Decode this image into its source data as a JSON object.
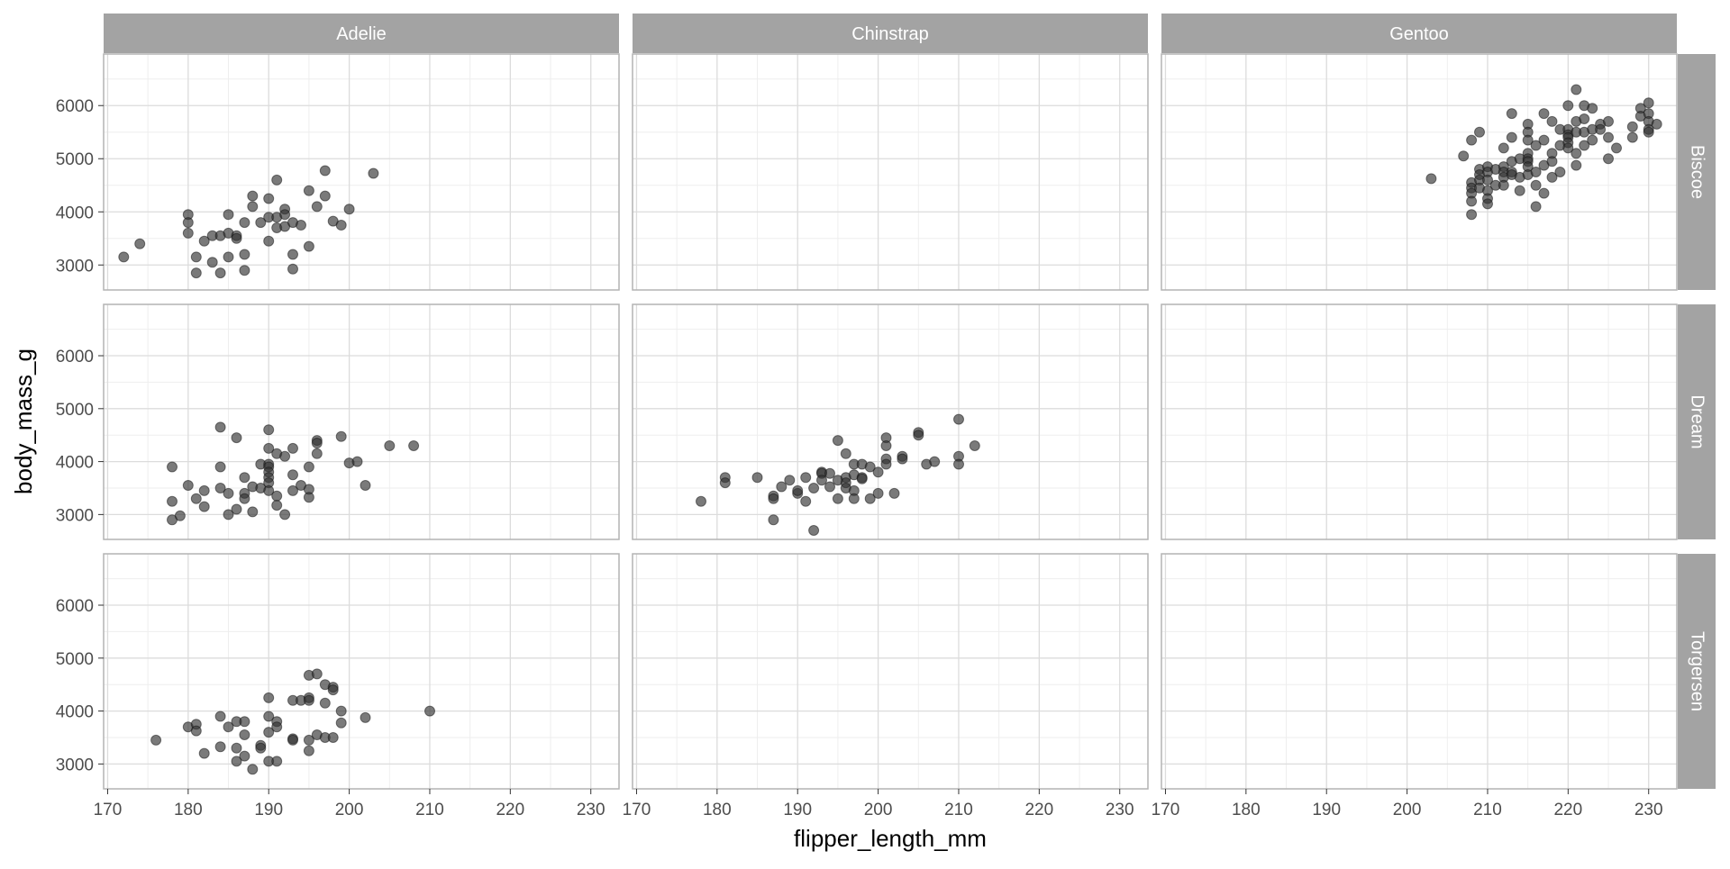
{
  "chart_data": {
    "type": "scatter",
    "facet_columns": [
      "Adelie",
      "Chinstrap",
      "Gentoo"
    ],
    "facet_rows": [
      "Biscoe",
      "Dream",
      "Torgersen"
    ],
    "xlabel": "flipper_length_mm",
    "ylabel": "body_mass_g",
    "xlim": [
      169.5,
      233.5
    ],
    "ylim": [
      2530,
      6970
    ],
    "x_ticks": [
      170,
      180,
      190,
      200,
      210,
      220,
      230
    ],
    "y_ticks": [
      3000,
      4000,
      5000,
      6000
    ],
    "grid": true,
    "colors": {
      "point": "#333333",
      "strip_fill": "#a3a3a3",
      "strip_text": "#ffffff",
      "panel_border": "#b3b3b3",
      "grid_major": "#dcdcdc",
      "grid_minor": "#eeeeee"
    },
    "panels": [
      {
        "species": "Adelie",
        "island": "Biscoe",
        "points": [
          [
            172,
            3150
          ],
          [
            174,
            3400
          ],
          [
            180,
            3950
          ],
          [
            180,
            3800
          ],
          [
            180,
            3600
          ],
          [
            181,
            3150
          ],
          [
            181,
            2850
          ],
          [
            182,
            3450
          ],
          [
            183,
            3550
          ],
          [
            183,
            3050
          ],
          [
            184,
            3550
          ],
          [
            184,
            2850
          ],
          [
            185,
            3600
          ],
          [
            185,
            3950
          ],
          [
            185,
            3150
          ],
          [
            186,
            3550
          ],
          [
            186,
            3500
          ],
          [
            187,
            3800
          ],
          [
            187,
            3200
          ],
          [
            187,
            2900
          ],
          [
            188,
            4300
          ],
          [
            188,
            4100
          ],
          [
            189,
            3800
          ],
          [
            190,
            4250
          ],
          [
            190,
            3900
          ],
          [
            190,
            3450
          ],
          [
            191,
            4600
          ],
          [
            191,
            3900
          ],
          [
            191,
            3700
          ],
          [
            192,
            4050
          ],
          [
            192,
            3950
          ],
          [
            192,
            3725
          ],
          [
            193,
            3800
          ],
          [
            193,
            3200
          ],
          [
            193,
            2925
          ],
          [
            194,
            3750
          ],
          [
            195,
            4400
          ],
          [
            195,
            3350
          ],
          [
            196,
            4100
          ],
          [
            197,
            4775
          ],
          [
            197,
            4300
          ],
          [
            198,
            3825
          ],
          [
            199,
            3750
          ],
          [
            200,
            4050
          ],
          [
            203,
            4725
          ]
        ]
      },
      {
        "species": "Chinstrap",
        "island": "Biscoe",
        "points": []
      },
      {
        "species": "Gentoo",
        "island": "Biscoe",
        "points": [
          [
            203,
            4625
          ],
          [
            207,
            5050
          ],
          [
            208,
            5350
          ],
          [
            208,
            4550
          ],
          [
            208,
            4450
          ],
          [
            208,
            4350
          ],
          [
            208,
            4200
          ],
          [
            208,
            3950
          ],
          [
            209,
            5500
          ],
          [
            209,
            4800
          ],
          [
            209,
            4700
          ],
          [
            209,
            4600
          ],
          [
            209,
            4450
          ],
          [
            210,
            4850
          ],
          [
            210,
            4750
          ],
          [
            210,
            4600
          ],
          [
            210,
            4400
          ],
          [
            210,
            4250
          ],
          [
            210,
            4150
          ],
          [
            211,
            4800
          ],
          [
            211,
            4500
          ],
          [
            212,
            5200
          ],
          [
            212,
            4850
          ],
          [
            212,
            4750
          ],
          [
            212,
            4650
          ],
          [
            212,
            4500
          ],
          [
            213,
            5850
          ],
          [
            213,
            5400
          ],
          [
            213,
            4950
          ],
          [
            213,
            4750
          ],
          [
            213,
            4700
          ],
          [
            214,
            5000
          ],
          [
            214,
            4650
          ],
          [
            214,
            4400
          ],
          [
            215,
            5650
          ],
          [
            215,
            5500
          ],
          [
            215,
            5350
          ],
          [
            215,
            5100
          ],
          [
            215,
            5000
          ],
          [
            215,
            4950
          ],
          [
            215,
            4850
          ],
          [
            215,
            4700
          ],
          [
            216,
            5250
          ],
          [
            216,
            4750
          ],
          [
            216,
            4500
          ],
          [
            216,
            4100
          ],
          [
            217,
            5850
          ],
          [
            217,
            5350
          ],
          [
            217,
            4875
          ],
          [
            217,
            4350
          ],
          [
            218,
            5700
          ],
          [
            218,
            5100
          ],
          [
            218,
            4950
          ],
          [
            218,
            4650
          ],
          [
            219,
            5550
          ],
          [
            219,
            5250
          ],
          [
            219,
            4750
          ],
          [
            220,
            6000
          ],
          [
            220,
            5550
          ],
          [
            220,
            5450
          ],
          [
            220,
            5400
          ],
          [
            220,
            5300
          ],
          [
            220,
            5200
          ],
          [
            221,
            6300
          ],
          [
            221,
            5700
          ],
          [
            221,
            5500
          ],
          [
            221,
            5100
          ],
          [
            221,
            4875
          ],
          [
            222,
            6000
          ],
          [
            222,
            5750
          ],
          [
            222,
            5500
          ],
          [
            222,
            5250
          ],
          [
            223,
            5950
          ],
          [
            223,
            5550
          ],
          [
            223,
            5350
          ],
          [
            224,
            5650
          ],
          [
            224,
            5550
          ],
          [
            225,
            5700
          ],
          [
            225,
            5400
          ],
          [
            225,
            5000
          ],
          [
            226,
            5200
          ],
          [
            228,
            5600
          ],
          [
            228,
            5400
          ],
          [
            229,
            5950
          ],
          [
            229,
            5800
          ],
          [
            230,
            6050
          ],
          [
            230,
            5850
          ],
          [
            230,
            5700
          ],
          [
            230,
            5550
          ],
          [
            230,
            5500
          ],
          [
            231,
            5650
          ]
        ]
      },
      {
        "species": "Adelie",
        "island": "Dream",
        "points": [
          [
            178,
            3900
          ],
          [
            178,
            3250
          ],
          [
            178,
            2900
          ],
          [
            179,
            2975
          ],
          [
            180,
            3550
          ],
          [
            181,
            3300
          ],
          [
            182,
            3450
          ],
          [
            182,
            3150
          ],
          [
            184,
            4650
          ],
          [
            184,
            3900
          ],
          [
            184,
            3500
          ],
          [
            185,
            3400
          ],
          [
            185,
            3000
          ],
          [
            186,
            4450
          ],
          [
            186,
            3100
          ],
          [
            187,
            3700
          ],
          [
            187,
            3400
          ],
          [
            187,
            3300
          ],
          [
            188,
            3525
          ],
          [
            188,
            3050
          ],
          [
            189,
            3950
          ],
          [
            189,
            3500
          ],
          [
            190,
            4600
          ],
          [
            190,
            4250
          ],
          [
            190,
            3950
          ],
          [
            190,
            3900
          ],
          [
            190,
            3800
          ],
          [
            190,
            3700
          ],
          [
            190,
            3600
          ],
          [
            190,
            3450
          ],
          [
            191,
            4150
          ],
          [
            191,
            3350
          ],
          [
            191,
            3175
          ],
          [
            192,
            4100
          ],
          [
            192,
            3000
          ],
          [
            193,
            4250
          ],
          [
            193,
            3750
          ],
          [
            193,
            3450
          ],
          [
            194,
            3550
          ],
          [
            195,
            3900
          ],
          [
            195,
            3475
          ],
          [
            195,
            3325
          ],
          [
            196,
            4400
          ],
          [
            196,
            4350
          ],
          [
            196,
            4150
          ],
          [
            199,
            4475
          ],
          [
            200,
            3975
          ],
          [
            201,
            4000
          ],
          [
            202,
            3550
          ],
          [
            205,
            4300
          ],
          [
            208,
            4300
          ]
        ]
      },
      {
        "species": "Chinstrap",
        "island": "Dream",
        "points": [
          [
            178,
            3250
          ],
          [
            181,
            3700
          ],
          [
            181,
            3600
          ],
          [
            185,
            3700
          ],
          [
            187,
            3350
          ],
          [
            187,
            3300
          ],
          [
            187,
            2900
          ],
          [
            188,
            3525
          ],
          [
            189,
            3650
          ],
          [
            190,
            3400
          ],
          [
            190,
            3450
          ],
          [
            191,
            3700
          ],
          [
            191,
            3250
          ],
          [
            192,
            3500
          ],
          [
            192,
            2700
          ],
          [
            193,
            3800
          ],
          [
            193,
            3775
          ],
          [
            193,
            3650
          ],
          [
            194,
            3525
          ],
          [
            194,
            3775
          ],
          [
            195,
            4400
          ],
          [
            195,
            3650
          ],
          [
            195,
            3300
          ],
          [
            196,
            4150
          ],
          [
            196,
            3700
          ],
          [
            196,
            3600
          ],
          [
            196,
            3500
          ],
          [
            197,
            3950
          ],
          [
            197,
            3750
          ],
          [
            197,
            3450
          ],
          [
            197,
            3300
          ],
          [
            198,
            3700
          ],
          [
            198,
            3675
          ],
          [
            198,
            3950
          ],
          [
            199,
            3900
          ],
          [
            199,
            3300
          ],
          [
            200,
            3800
          ],
          [
            200,
            3400
          ],
          [
            201,
            4450
          ],
          [
            201,
            4300
          ],
          [
            201,
            4050
          ],
          [
            201,
            3950
          ],
          [
            202,
            3400
          ],
          [
            203,
            4100
          ],
          [
            203,
            4050
          ],
          [
            205,
            4550
          ],
          [
            205,
            4500
          ],
          [
            206,
            3950
          ],
          [
            207,
            4000
          ],
          [
            210,
            4800
          ],
          [
            210,
            4100
          ],
          [
            210,
            3950
          ],
          [
            212,
            4300
          ]
        ]
      },
      {
        "species": "Gentoo",
        "island": "Dream",
        "points": []
      },
      {
        "species": "Adelie",
        "island": "Torgersen",
        "points": [
          [
            176,
            3450
          ],
          [
            180,
            3700
          ],
          [
            181,
            3750
          ],
          [
            181,
            3625
          ],
          [
            182,
            3200
          ],
          [
            184,
            3900
          ],
          [
            184,
            3325
          ],
          [
            185,
            3700
          ],
          [
            186,
            3800
          ],
          [
            186,
            3300
          ],
          [
            186,
            3050
          ],
          [
            187,
            3800
          ],
          [
            187,
            3550
          ],
          [
            187,
            3150
          ],
          [
            188,
            2900
          ],
          [
            189,
            3350
          ],
          [
            189,
            3300
          ],
          [
            190,
            4250
          ],
          [
            190,
            3900
          ],
          [
            190,
            3600
          ],
          [
            190,
            3050
          ],
          [
            191,
            3800
          ],
          [
            191,
            3700
          ],
          [
            191,
            3050
          ],
          [
            193,
            4200
          ],
          [
            193,
            3475
          ],
          [
            193,
            3450
          ],
          [
            194,
            4200
          ],
          [
            195,
            4250
          ],
          [
            195,
            4200
          ],
          [
            195,
            3450
          ],
          [
            195,
            3250
          ],
          [
            195,
            4675
          ],
          [
            196,
            4700
          ],
          [
            196,
            3550
          ],
          [
            197,
            4500
          ],
          [
            197,
            4150
          ],
          [
            197,
            3500
          ],
          [
            198,
            4450
          ],
          [
            198,
            4400
          ],
          [
            198,
            3500
          ],
          [
            199,
            4000
          ],
          [
            199,
            3775
          ],
          [
            202,
            3875
          ],
          [
            210,
            4000
          ]
        ]
      },
      {
        "species": "Chinstrap",
        "island": "Torgersen",
        "points": []
      },
      {
        "species": "Gentoo",
        "island": "Torgersen",
        "points": []
      }
    ]
  }
}
